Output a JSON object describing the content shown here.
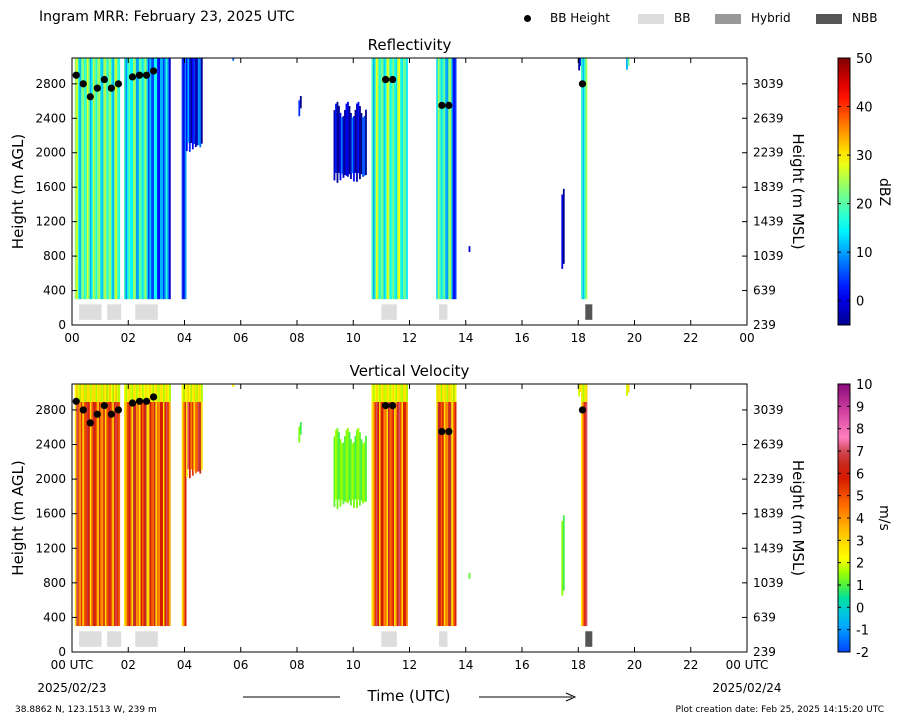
{
  "header": {
    "title": "Ingram MRR:  February 23, 2025 UTC",
    "legend": [
      {
        "label": "BB Height",
        "color": "#000000",
        "icon": "dot-icon"
      },
      {
        "label": "BB",
        "color": "#dddddd",
        "icon": "swatch-icon"
      },
      {
        "label": "Hybrid",
        "color": "#999999",
        "icon": "swatch-icon"
      },
      {
        "label": "NBB",
        "color": "#555555",
        "icon": "swatch-icon"
      }
    ]
  },
  "footer": {
    "location": "38.8862 N, 123.1513 W, 239 m",
    "created": "Plot creation date: Feb 25, 2025 14:15:20 UTC"
  },
  "chart_data": [
    {
      "type": "heatmap",
      "title": "Reflectivity",
      "ylabel": "Height (m AGL)",
      "ylabel_right": "Height (m MSL)",
      "xlim": [
        0,
        24
      ],
      "ylim": [
        0,
        3100
      ],
      "yticks": [
        "0",
        "400",
        "800",
        "1200",
        "1600",
        "2000",
        "2400",
        "2800"
      ],
      "yticks_right": [
        "239",
        "639",
        "1039",
        "1439",
        "1839",
        "2239",
        "2639",
        "3039"
      ],
      "xticks": [
        "00",
        "02",
        "04",
        "06",
        "08",
        "10",
        "12",
        "14",
        "16",
        "18",
        "20",
        "22",
        "00"
      ],
      "colorbar": {
        "label": "dBZ",
        "range": [
          -5,
          50
        ],
        "ticks": [
          "0",
          "10",
          "20",
          "30",
          "40",
          "50"
        ]
      },
      "precip_columns": [
        {
          "x0": 0.1,
          "x1": 1.7,
          "top": 3100,
          "bottom": 300,
          "level": 0.45
        },
        {
          "x0": 1.85,
          "x1": 2.7,
          "top": 3100,
          "bottom": 300,
          "level": 0.4
        },
        {
          "x0": 2.7,
          "x1": 3.45,
          "top": 3100,
          "bottom": 300,
          "level": 0.25
        },
        {
          "x0": 3.9,
          "x1": 4.05,
          "top": 3100,
          "bottom": 300,
          "level": 0.2
        },
        {
          "x0": 4.05,
          "x1": 4.6,
          "top": 3100,
          "bottom": 2000,
          "level": 0.12
        },
        {
          "x0": 8.05,
          "x1": 8.15,
          "top": 2700,
          "bottom": 2400,
          "level": 0.08
        },
        {
          "x0": 9.3,
          "x1": 10.45,
          "top": 2500,
          "bottom": 1650,
          "level": 0.07
        },
        {
          "x0": 10.65,
          "x1": 11.9,
          "top": 3100,
          "bottom": 300,
          "level": 0.45
        },
        {
          "x0": 12.95,
          "x1": 13.5,
          "top": 3100,
          "bottom": 300,
          "level": 0.4
        },
        {
          "x0": 13.5,
          "x1": 13.65,
          "top": 3100,
          "bottom": 300,
          "level": 0.15
        },
        {
          "x0": 14.1,
          "x1": 14.15,
          "top": 1000,
          "bottom": 800,
          "level": 0.06
        },
        {
          "x0": 17.4,
          "x1": 17.48,
          "top": 1500,
          "bottom": 600,
          "level": 0.05
        },
        {
          "x0": 18.0,
          "x1": 18.1,
          "top": 3100,
          "bottom": 2900,
          "level": 0.1
        },
        {
          "x0": 18.1,
          "x1": 18.3,
          "top": 3100,
          "bottom": 300,
          "level": 0.38
        },
        {
          "x0": 19.7,
          "x1": 19.78,
          "top": 3100,
          "bottom": 2900,
          "level": 0.3
        },
        {
          "x0": 5.7,
          "x1": 5.75,
          "top": 3100,
          "bottom": 3000,
          "level": 0.1
        }
      ],
      "bb_heights": [
        {
          "x": 0.15,
          "y": 2900
        },
        {
          "x": 0.4,
          "y": 2800
        },
        {
          "x": 0.65,
          "y": 2650
        },
        {
          "x": 0.9,
          "y": 2750
        },
        {
          "x": 1.15,
          "y": 2850
        },
        {
          "x": 1.4,
          "y": 2750
        },
        {
          "x": 1.65,
          "y": 2800
        },
        {
          "x": 2.15,
          "y": 2880
        },
        {
          "x": 2.4,
          "y": 2900
        },
        {
          "x": 2.65,
          "y": 2900
        },
        {
          "x": 2.9,
          "y": 2950
        },
        {
          "x": 11.15,
          "y": 2850
        },
        {
          "x": 11.4,
          "y": 2850
        },
        {
          "x": 13.15,
          "y": 2550
        },
        {
          "x": 13.4,
          "y": 2550
        },
        {
          "x": 18.15,
          "y": 2800
        }
      ],
      "bb_segments": [
        {
          "x0": 0.25,
          "x1": 1.05,
          "kind": "BB"
        },
        {
          "x0": 1.25,
          "x1": 1.75,
          "kind": "BB"
        },
        {
          "x0": 2.25,
          "x1": 3.05,
          "kind": "BB"
        },
        {
          "x0": 11.0,
          "x1": 11.55,
          "kind": "BB"
        },
        {
          "x0": 13.05,
          "x1": 13.35,
          "kind": "BB"
        },
        {
          "x0": 18.25,
          "x1": 18.5,
          "kind": "NBB"
        }
      ]
    },
    {
      "type": "heatmap",
      "title": "Vertical Velocity",
      "ylabel": "Height (m AGL)",
      "ylabel_right": "Height (m MSL)",
      "xlabel": "Time (UTC)",
      "xlim": [
        0,
        24
      ],
      "ylim": [
        0,
        3100
      ],
      "yticks": [
        "0",
        "400",
        "800",
        "1200",
        "1600",
        "2000",
        "2400",
        "2800"
      ],
      "yticks_right": [
        "239",
        "639",
        "1039",
        "1439",
        "1839",
        "2239",
        "2639",
        "3039"
      ],
      "xticks": [
        "00 UTC",
        "02",
        "04",
        "06",
        "08",
        "10",
        "12",
        "14",
        "16",
        "18",
        "20",
        "22",
        "00 UTC"
      ],
      "date_start": "2025/02/23",
      "date_end": "2025/02/24",
      "colorbar": {
        "label": "m/s",
        "range": [
          -2,
          10
        ],
        "ticks": [
          "-2",
          "-1",
          "0",
          "1",
          "2",
          "3",
          "4",
          "5",
          "6",
          "7",
          "8",
          "9",
          "10"
        ]
      },
      "precip_columns": [
        {
          "x0": 0.1,
          "x1": 1.7,
          "top": 3100,
          "bottom": 300,
          "level": 0.45
        },
        {
          "x0": 1.85,
          "x1": 2.7,
          "top": 3100,
          "bottom": 300,
          "level": 0.4
        },
        {
          "x0": 2.7,
          "x1": 3.45,
          "top": 3100,
          "bottom": 300,
          "level": 0.25
        },
        {
          "x0": 3.9,
          "x1": 4.05,
          "top": 3100,
          "bottom": 300,
          "level": 0.2
        },
        {
          "x0": 4.05,
          "x1": 4.6,
          "top": 3100,
          "bottom": 2000,
          "level": 0.12
        },
        {
          "x0": 8.05,
          "x1": 8.15,
          "top": 2700,
          "bottom": 2400,
          "level": 0.08
        },
        {
          "x0": 9.3,
          "x1": 10.45,
          "top": 2500,
          "bottom": 1650,
          "level": 0.07
        },
        {
          "x0": 10.65,
          "x1": 11.9,
          "top": 3100,
          "bottom": 300,
          "level": 0.45
        },
        {
          "x0": 12.95,
          "x1": 13.5,
          "top": 3100,
          "bottom": 300,
          "level": 0.4
        },
        {
          "x0": 13.5,
          "x1": 13.65,
          "top": 3100,
          "bottom": 300,
          "level": 0.15
        },
        {
          "x0": 14.1,
          "x1": 14.15,
          "top": 1000,
          "bottom": 800,
          "level": 0.06
        },
        {
          "x0": 17.4,
          "x1": 17.48,
          "top": 1500,
          "bottom": 600,
          "level": 0.05
        },
        {
          "x0": 18.0,
          "x1": 18.1,
          "top": 3100,
          "bottom": 2900,
          "level": 0.1
        },
        {
          "x0": 18.1,
          "x1": 18.3,
          "top": 3100,
          "bottom": 300,
          "level": 0.38
        },
        {
          "x0": 19.7,
          "x1": 19.78,
          "top": 3100,
          "bottom": 2900,
          "level": 0.3
        },
        {
          "x0": 5.7,
          "x1": 5.75,
          "top": 3100,
          "bottom": 3000,
          "level": 0.1
        }
      ],
      "bb_heights": [
        {
          "x": 0.15,
          "y": 2900
        },
        {
          "x": 0.4,
          "y": 2800
        },
        {
          "x": 0.65,
          "y": 2650
        },
        {
          "x": 0.9,
          "y": 2750
        },
        {
          "x": 1.15,
          "y": 2850
        },
        {
          "x": 1.4,
          "y": 2750
        },
        {
          "x": 1.65,
          "y": 2800
        },
        {
          "x": 2.15,
          "y": 2880
        },
        {
          "x": 2.4,
          "y": 2900
        },
        {
          "x": 2.65,
          "y": 2900
        },
        {
          "x": 2.9,
          "y": 2950
        },
        {
          "x": 11.15,
          "y": 2850
        },
        {
          "x": 11.4,
          "y": 2850
        },
        {
          "x": 13.15,
          "y": 2550
        },
        {
          "x": 13.4,
          "y": 2550
        },
        {
          "x": 18.15,
          "y": 2800
        }
      ],
      "bb_segments": [
        {
          "x0": 0.25,
          "x1": 1.05,
          "kind": "BB"
        },
        {
          "x0": 1.25,
          "x1": 1.75,
          "kind": "BB"
        },
        {
          "x0": 2.25,
          "x1": 3.05,
          "kind": "BB"
        },
        {
          "x0": 11.0,
          "x1": 11.55,
          "kind": "BB"
        },
        {
          "x0": 13.05,
          "x1": 13.35,
          "kind": "BB"
        },
        {
          "x0": 18.25,
          "x1": 18.5,
          "kind": "NBB"
        }
      ]
    }
  ]
}
